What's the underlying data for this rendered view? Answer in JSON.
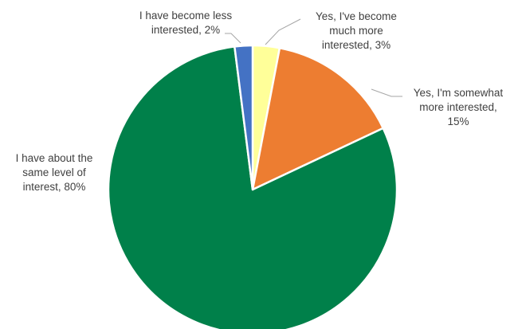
{
  "chart_data": {
    "type": "pie",
    "slices": [
      {
        "label_lines": [
          "Yes, I've become",
          "much more",
          "interested, 3%"
        ],
        "value": 3,
        "color": "#FFFF99"
      },
      {
        "label_lines": [
          "Yes, I'm somewhat",
          "more interested,",
          "15%"
        ],
        "value": 15,
        "color": "#ED7D31"
      },
      {
        "label_lines": [
          "I have about the",
          "same level of",
          "interest, 80%"
        ],
        "value": 80,
        "color": "#00804A"
      },
      {
        "label_lines": [
          "I have become less",
          "interested, 2%"
        ],
        "value": 2,
        "color": "#4472C4"
      }
    ],
    "start": "12 o'clock",
    "direction": "clockwise",
    "legend": "none, data labels with leader lines"
  }
}
